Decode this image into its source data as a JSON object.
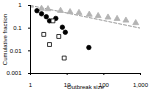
{
  "chart_data": {
    "type": "scatter",
    "x_label": "Outbreak size",
    "y_label": "Cumulative fraction",
    "log": true,
    "xlim": [
      1,
      1000
    ],
    "ylim": [
      0.001,
      1
    ],
    "xticks": [
      1,
      10,
      100,
      {
        "value": 1000,
        "label": "1,000"
      }
    ],
    "yticks": [
      0.001,
      0.01,
      0.1,
      1
    ],
    "series": [
      {
        "type": "line",
        "color": "#999999",
        "line_style": "dashed",
        "x": [
          1,
          1000
        ],
        "values": [
          1,
          0.1
        ]
      },
      {
        "type": "scatter",
        "color": "#b3b3b3",
        "marker": "triangle",
        "x": [
          1,
          2,
          3,
          6.6,
          12,
          21,
          40,
          70,
          130,
          230,
          400,
          740
        ],
        "values": [
          1,
          0.73,
          0.7,
          0.59,
          0.52,
          0.48,
          0.4,
          0.35,
          0.3,
          0.26,
          0.22,
          0.17
        ]
      },
      {
        "type": "scatter",
        "color": "#000000",
        "marker": "circle",
        "x": [
          1.5,
          2,
          2.7,
          3.3,
          4.9,
          7.4,
          8.9,
          39
        ],
        "values": [
          0.59,
          0.43,
          0.32,
          0.21,
          0.27,
          0.11,
          0.066,
          0.014
        ]
      },
      {
        "type": "scatter",
        "color": "#000000",
        "marker": "open-square",
        "x": [
          2.3,
          3.3,
          4.1,
          5.9,
          8.3
        ],
        "values": [
          0.053,
          0.019,
          0.21,
          0.043,
          0.0048
        ]
      }
    ]
  }
}
